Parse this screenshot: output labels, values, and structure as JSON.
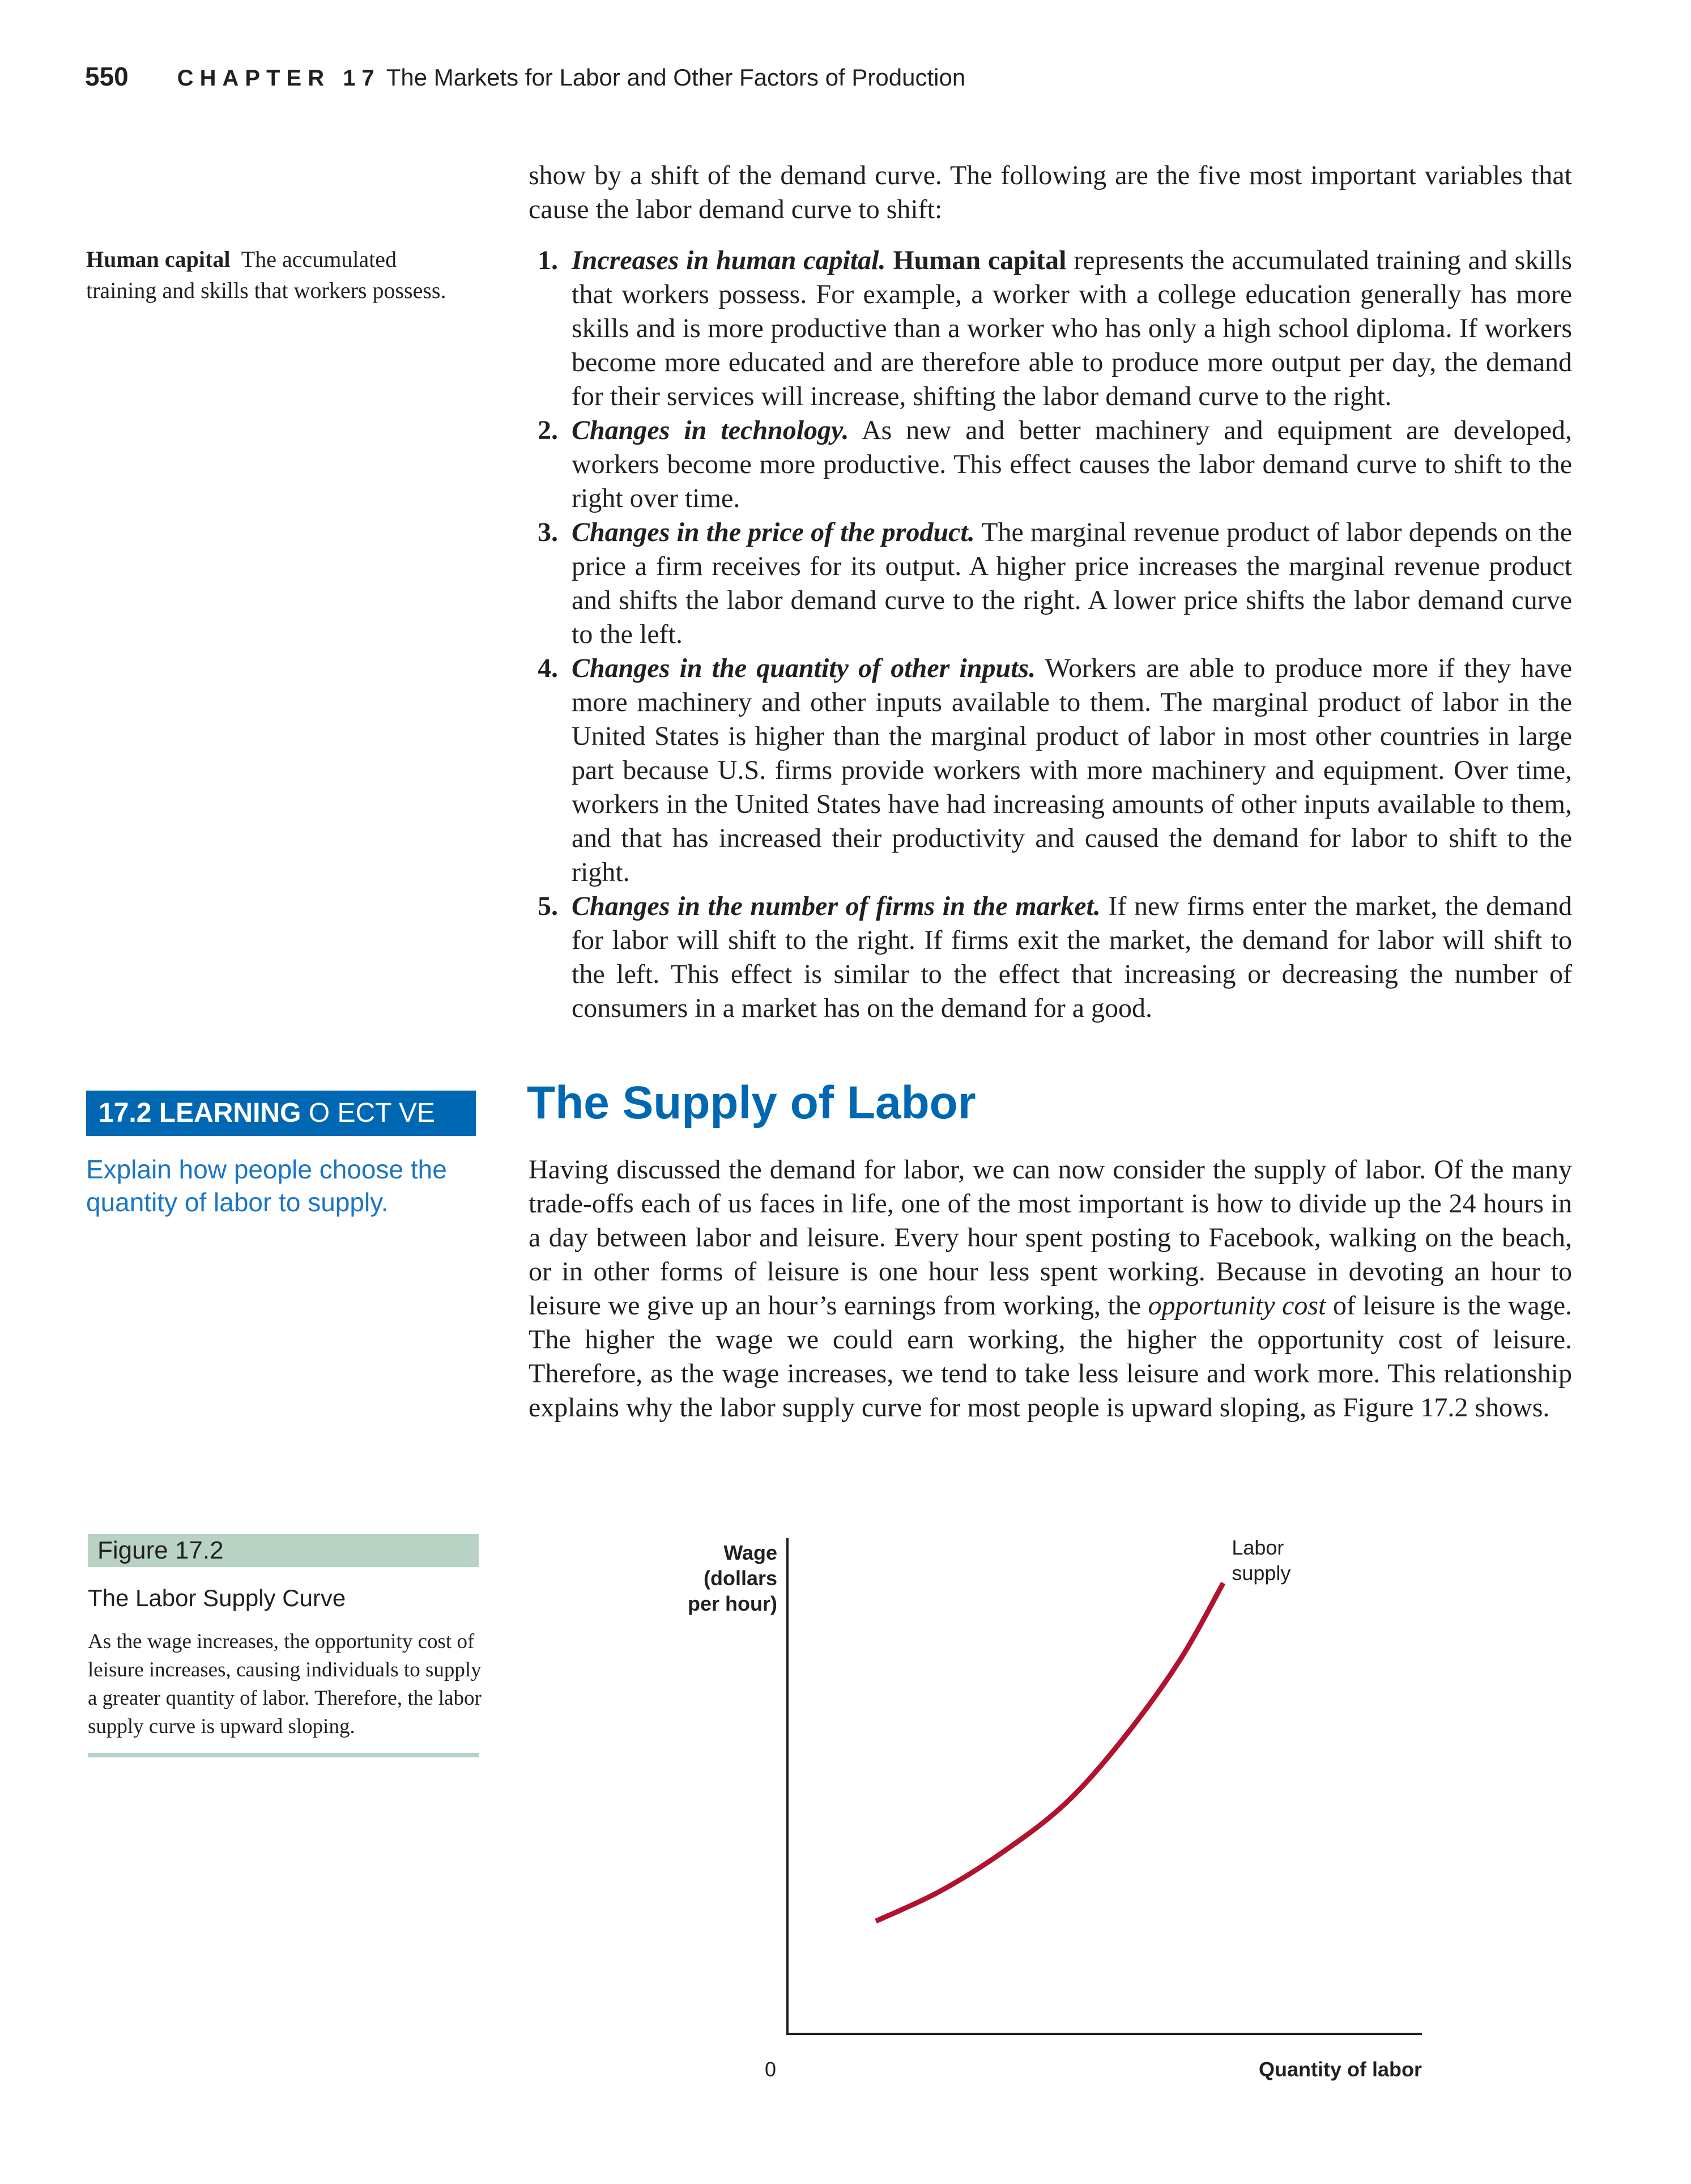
{
  "header": {
    "page_number": "550",
    "chapter_label": "CHAPTER 17",
    "chapter_title": "The Markets for Labor and Other Factors of Production"
  },
  "glossary": {
    "term": "Human capital",
    "definition": "The accumulated training and skills that workers possess."
  },
  "intro": "show by a shift of the demand curve. The following are the five most important variables that cause the labor demand curve to shift:",
  "factors": [
    {
      "num": "1.",
      "lead": "Increases in human capital.",
      "term": "Human capital",
      "text_a": "represents the accumulated training and skills that workers possess. For example, a worker with a college education generally has more skills and is more productive than a worker who has only a high school diploma. If workers become more educated and are therefore able to produce more output per day, the demand for their services will increase, shifting the labor demand curve to the right."
    },
    {
      "num": "2.",
      "lead": "Changes in technology.",
      "text": "As new and better machinery and equipment are developed, workers become more productive. This effect causes the labor demand curve to shift to the right over time."
    },
    {
      "num": "3.",
      "lead": "Changes in the price of the product.",
      "text": "The marginal revenue product of labor depends on the price a firm receives for its output. A higher price increases the marginal revenue product and shifts the labor demand curve to the right. A lower price shifts the labor demand curve to the left."
    },
    {
      "num": "4.",
      "lead": "Changes in the quantity of other inputs.",
      "text": "Workers are able to produce more if they have more machinery and other inputs available to them. The marginal product of labor in the United States is higher than the marginal product of labor in most other countries in large part because U.S. firms provide workers with more machinery and equipment. Over time, workers in the United States have had increasing amounts of other inputs available to them, and that has increased their productivity and caused the demand for labor to shift to the right."
    },
    {
      "num": "5.",
      "lead": "Changes in the number of firms in the market.",
      "text": "If new firms enter the market, the demand for labor will shift to the right. If firms exit the market, the demand for labor will shift to the left. This effect is similar to the effect that increasing or decreasing the number of consumers in a market has on the demand for a good."
    }
  ],
  "learning_objective": {
    "title": "17.2 LEARNING",
    "suffix": "O    ECT VE",
    "text": "Explain how people choose the quantity of labor to supply."
  },
  "section": {
    "heading": "The Supply of Labor",
    "para_a": "Having discussed the demand for labor, we can now consider the supply of labor. Of the many trade-offs each of us faces in life, one of the most important is how to divide up the 24 hours in a day between labor and leisure. Every hour spent posting to Facebook, walking on the beach, or in other forms of leisure is one hour less spent working. Because in devoting an hour to leisure we give up an hour’s earnings from working, the",
    "para_em": "opportunity cost",
    "para_b": "of leisure is the wage. The higher the wage we could earn working, the higher the opportunity cost of leisure. Therefore, as the wage increases, we tend to take less leisure and work more. This relationship explains why the labor supply curve for most people is upward sloping, as Figure 17.2 shows."
  },
  "figure": {
    "label": "Figure 17.2",
    "title": "The Labor Supply Curve",
    "caption": "As the wage increases, the opportunity cost of leisure increases, causing individuals to supply a greater quantity of labor. Therefore, the labor supply curve is upward sloping.",
    "colors": {
      "bar": "#b8d3c3",
      "curve": "#b1132f",
      "heading": "#0068b3"
    }
  },
  "chart_data": {
    "type": "line",
    "title": "",
    "ylabel_lines": [
      "Wage",
      "(dollars",
      "per hour)"
    ],
    "xlabel": "Quantity of labor",
    "origin_label": "0",
    "ticks": false,
    "grid": false,
    "xlim": [
      0,
      100
    ],
    "ylim": [
      0,
      100
    ],
    "series": [
      {
        "name": "Labor supply",
        "name_lines": [
          "Labor",
          "supply"
        ],
        "color": "#b1132f",
        "points": [
          [
            14,
            23
          ],
          [
            24,
            29
          ],
          [
            34,
            37
          ],
          [
            44,
            47
          ],
          [
            53,
            60
          ],
          [
            62,
            76
          ],
          [
            69,
            92
          ]
        ]
      }
    ]
  }
}
